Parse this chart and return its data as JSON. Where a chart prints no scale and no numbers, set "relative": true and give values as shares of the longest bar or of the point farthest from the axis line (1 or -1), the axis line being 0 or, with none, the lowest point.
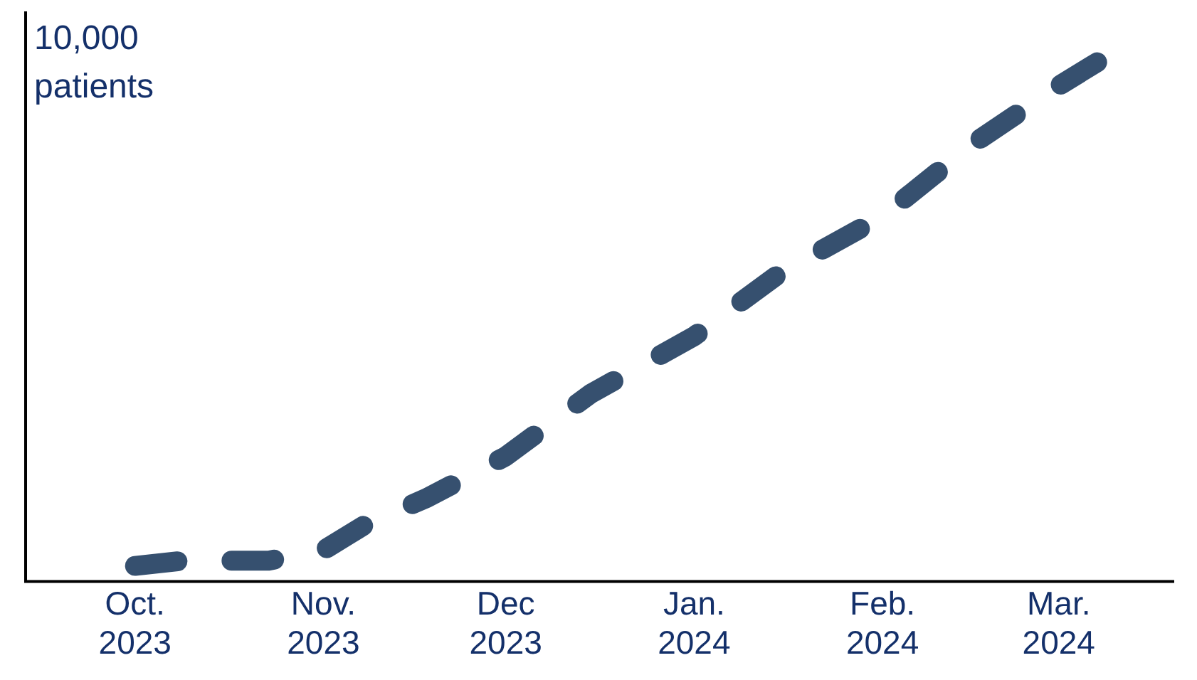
{
  "chart_data": {
    "type": "line",
    "relative": true,
    "x": [
      "2023-10-01",
      "2023-10-09",
      "2023-10-23",
      "2023-11-01",
      "2023-11-08",
      "2023-11-18",
      "2023-12-01",
      "2023-12-15",
      "2024-01-01",
      "2024-01-15",
      "2024-02-01",
      "2024-02-16",
      "2024-03-01",
      "2024-03-08"
    ],
    "series": [
      {
        "color": "#36506f",
        "values": [
          0.03,
          0.04,
          0.04,
          0.06,
          0.11,
          0.16,
          0.24,
          0.36,
          0.47,
          0.59,
          0.7,
          0.84,
          0.95,
          1
        ]
      }
    ],
    "xlim": [
      "2023-09-13",
      "2024-03-20"
    ],
    "xticks": [
      {
        "value": "2023-10-01",
        "label": "Oct.\n2023"
      },
      {
        "value": "2023-11-01",
        "label": "Nov.\n2023"
      },
      {
        "value": "2023-12-01",
        "label": "Dec\n2023"
      },
      {
        "value": "2024-01-01",
        "label": "Jan.\n2024"
      },
      {
        "value": "2024-02-01",
        "label": "Feb.\n2024"
      },
      {
        "value": "2024-03-01",
        "label": "Mar.\n2024"
      }
    ],
    "annotations": [
      "10,000\npatients"
    ],
    "legend": false,
    "marker": "none",
    "line_style": "dashed"
  }
}
